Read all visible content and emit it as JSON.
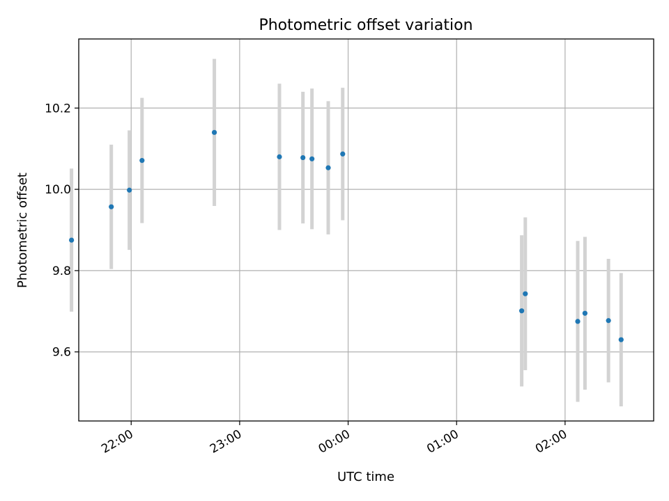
{
  "chart_data": {
    "type": "scatter",
    "title": "Photometric offset variation",
    "xlabel": "UTC time",
    "ylabel": "Photometric offset",
    "x_axis_type": "time",
    "x_range": [
      "21:31",
      "02:49"
    ],
    "ylim": [
      9.43,
      10.37
    ],
    "y_ticks": [
      9.6,
      9.8,
      10.0,
      10.2
    ],
    "x_ticks": [
      "22:00",
      "23:00",
      "00:00",
      "01:00",
      "02:00"
    ],
    "x_tick_labels": [
      "22:00",
      "23:00",
      "00:00",
      "01:00",
      "02:00"
    ],
    "grid": true,
    "marker_color": "#1f77b4",
    "errorbar_color": "#d3d3d3",
    "points": [
      {
        "x": "21:27",
        "y": 9.875,
        "yerr": 0.176
      },
      {
        "x": "21:49",
        "y": 9.957,
        "yerr": 0.153
      },
      {
        "x": "21:59",
        "y": 9.998,
        "yerr": 0.147
      },
      {
        "x": "22:06",
        "y": 10.071,
        "yerr": 0.154
      },
      {
        "x": "22:46",
        "y": 10.14,
        "yerr": 0.181
      },
      {
        "x": "23:22",
        "y": 10.08,
        "yerr": 0.18
      },
      {
        "x": "23:35",
        "y": 10.078,
        "yerr": 0.162
      },
      {
        "x": "23:40",
        "y": 10.075,
        "yerr": 0.173
      },
      {
        "x": "23:49",
        "y": 10.053,
        "yerr": 0.164
      },
      {
        "x": "23:57",
        "y": 10.087,
        "yerr": 0.163
      },
      {
        "x": "01:36",
        "y": 9.701,
        "yerr": 0.186
      },
      {
        "x": "01:38",
        "y": 9.743,
        "yerr": 0.188
      },
      {
        "x": "02:07",
        "y": 9.675,
        "yerr": 0.198
      },
      {
        "x": "02:11",
        "y": 9.695,
        "yerr": 0.188
      },
      {
        "x": "02:24",
        "y": 9.677,
        "yerr": 0.152
      },
      {
        "x": "02:31",
        "y": 9.63,
        "yerr": 0.164
      }
    ]
  }
}
